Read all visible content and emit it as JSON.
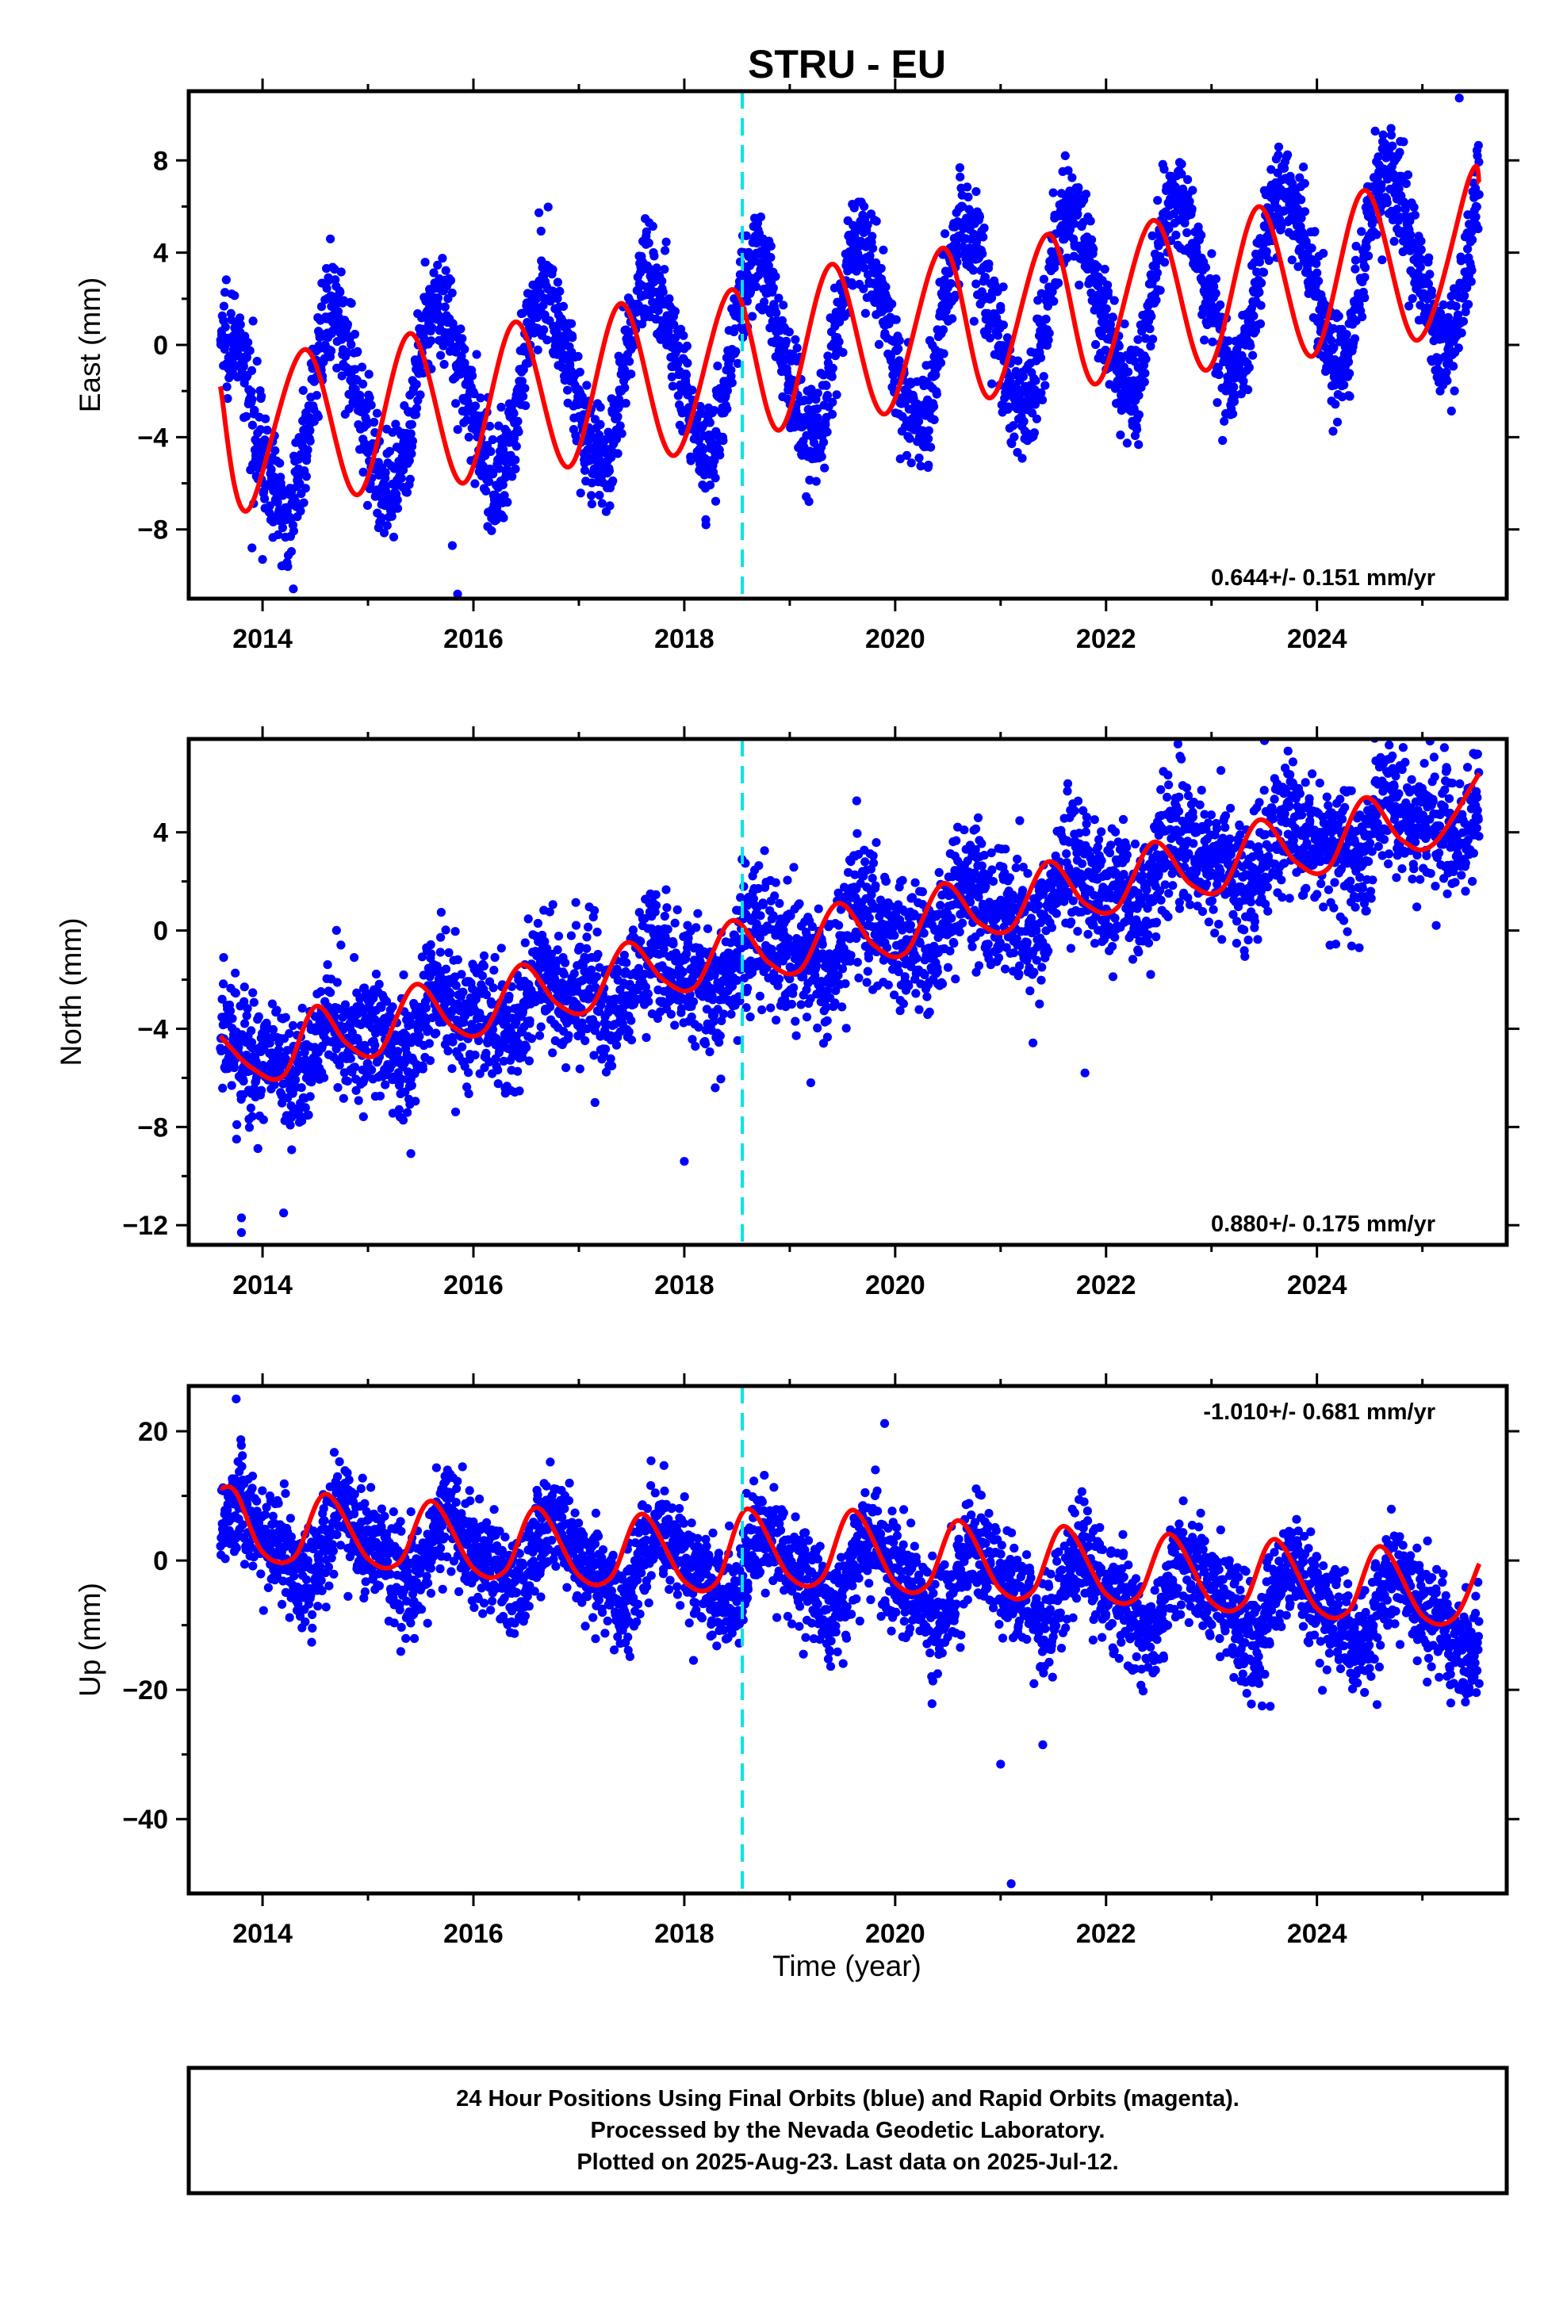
{
  "title": "STRU - EU",
  "xlabel": "Time (year)",
  "note": {
    "lines": [
      "24 Hour Positions Using Final Orbits (blue) and Rapid Orbits (magenta).",
      "Processed by the Nevada Geodetic Laboratory.",
      "Plotted on 2025-Aug-23. Last data on 2025-Jul-12."
    ]
  },
  "colors": {
    "points": "#0000ff",
    "model": "#ff0000",
    "event": "#00e5e5",
    "frame": "#000000"
  },
  "chart_data": [
    {
      "type": "scatter",
      "ylabel": "East (mm)",
      "rate_label": "0.644+/- 0.151 mm/yr",
      "xlim": [
        2013.3,
        2025.8
      ],
      "ylim": [
        -11,
        11
      ],
      "xticks": [
        2014,
        2016,
        2018,
        2020,
        2022,
        2024
      ],
      "yticks": [
        -8,
        -4,
        0,
        4,
        8
      ],
      "event_year": 2018.55,
      "data_range": [
        2013.6,
        2025.54
      ],
      "model": {
        "offset": -3.55,
        "rate": 0.644,
        "ref_year": 2013.6,
        "annual_amp": 4.0,
        "annual_phase_year": 2013.44,
        "semi_amp": 0.4,
        "scatter_sd": 1.15,
        "n_points": 3700
      },
      "model_line": [
        [
          2013.6,
          -1.8
        ],
        [
          2013.85,
          -7.2
        ],
        [
          2014.4,
          -0.2
        ],
        [
          2014.9,
          -6.5
        ],
        [
          2015.4,
          0.5
        ],
        [
          2015.9,
          -6.0
        ],
        [
          2016.4,
          1.0
        ],
        [
          2016.9,
          -5.3
        ],
        [
          2017.4,
          1.8
        ],
        [
          2017.9,
          -4.8
        ],
        [
          2018.45,
          2.4
        ],
        [
          2018.9,
          -3.7
        ],
        [
          2019.4,
          3.5
        ],
        [
          2019.9,
          -3.0
        ],
        [
          2020.45,
          4.2
        ],
        [
          2020.9,
          -2.3
        ],
        [
          2021.45,
          4.8
        ],
        [
          2021.9,
          -1.7
        ],
        [
          2022.45,
          5.4
        ],
        [
          2022.95,
          -1.1
        ],
        [
          2023.45,
          6.0
        ],
        [
          2023.95,
          -0.5
        ],
        [
          2024.45,
          6.7
        ],
        [
          2024.95,
          0.2
        ],
        [
          2025.45,
          7.3
        ],
        [
          2025.54,
          7.0
        ]
      ],
      "outliers": [
        [
          2015.85,
          -10.8
        ],
        [
          2014.0,
          -9.3
        ],
        [
          2013.9,
          -8.8
        ],
        [
          2015.8,
          -8.7
        ],
        [
          2025.35,
          10.7
        ]
      ]
    },
    {
      "type": "scatter",
      "ylabel": "North (mm)",
      "rate_label": "0.880+/- 0.175 mm/yr",
      "xlim": [
        2013.3,
        2025.8
      ],
      "ylim": [
        -12.8,
        7.8
      ],
      "xticks": [
        2014,
        2016,
        2018,
        2020,
        2022,
        2024
      ],
      "yticks": [
        -12,
        -8,
        -4,
        0,
        4
      ],
      "event_year": 2018.55,
      "data_range": [
        2013.6,
        2025.54
      ],
      "model": {
        "offset": -5.6,
        "rate": 0.88,
        "ref_year": 2013.6,
        "annual_amp": 0.9,
        "annual_phase_year": 2013.5,
        "semi_amp": 0.5,
        "scatter_sd": 1.3,
        "n_points": 3700
      },
      "model_line": [
        [
          2013.6,
          -4.3
        ],
        [
          2013.9,
          -5.6
        ],
        [
          2014.2,
          -5.9
        ],
        [
          2014.5,
          -3.1
        ],
        [
          2014.8,
          -4.6
        ],
        [
          2015.1,
          -5.0
        ],
        [
          2015.45,
          -2.2
        ],
        [
          2015.8,
          -3.9
        ],
        [
          2016.1,
          -4.1
        ],
        [
          2016.45,
          -1.4
        ],
        [
          2016.8,
          -3.0
        ],
        [
          2017.1,
          -3.2
        ],
        [
          2017.45,
          -0.5
        ],
        [
          2017.8,
          -2.0
        ],
        [
          2018.1,
          -2.3
        ],
        [
          2018.45,
          0.4
        ],
        [
          2018.8,
          -1.3
        ],
        [
          2019.1,
          -1.6
        ],
        [
          2019.45,
          1.1
        ],
        [
          2019.8,
          -0.6
        ],
        [
          2020.1,
          -0.9
        ],
        [
          2020.45,
          1.9
        ],
        [
          2020.8,
          0.3
        ],
        [
          2021.1,
          0.1
        ],
        [
          2021.45,
          2.8
        ],
        [
          2021.8,
          1.1
        ],
        [
          2022.1,
          0.9
        ],
        [
          2022.45,
          3.6
        ],
        [
          2022.8,
          1.9
        ],
        [
          2023.1,
          1.7
        ],
        [
          2023.45,
          4.5
        ],
        [
          2023.8,
          2.8
        ],
        [
          2024.1,
          2.5
        ],
        [
          2024.45,
          5.4
        ],
        [
          2024.8,
          3.7
        ],
        [
          2025.1,
          3.5
        ],
        [
          2025.54,
          6.4
        ]
      ],
      "outliers": [
        [
          2013.8,
          -12.3
        ],
        [
          2013.8,
          -11.7
        ],
        [
          2014.2,
          -11.5
        ],
        [
          2018.0,
          -9.4
        ],
        [
          2019.2,
          -6.2
        ],
        [
          2021.8,
          -5.8
        ]
      ]
    },
    {
      "type": "scatter",
      "ylabel": "Up (mm)",
      "rate_label": "-1.010+/- 0.681 mm/yr",
      "xlim": [
        2013.3,
        2025.8
      ],
      "ylim": [
        -51.5,
        27
      ],
      "xticks": [
        2014,
        2016,
        2018,
        2020,
        2022,
        2024
      ],
      "yticks": [
        -40,
        -20,
        0,
        20
      ],
      "event_year": 2018.55,
      "data_range": [
        2013.6,
        2025.54
      ],
      "model": {
        "offset": 3.5,
        "rate": -1.01,
        "ref_year": 2013.6,
        "annual_amp": 5.0,
        "annual_phase_year": 2013.58,
        "semi_amp": 2.0,
        "scatter_sd": 4.0,
        "n_points": 3700
      },
      "model_line": [
        [
          2013.6,
          11.2
        ],
        [
          2013.75,
          10.5
        ],
        [
          2014.0,
          1.3
        ],
        [
          2014.3,
          0.5
        ],
        [
          2014.6,
          10.3
        ],
        [
          2015.0,
          0.3
        ],
        [
          2015.3,
          -0.2
        ],
        [
          2015.6,
          9.2
        ],
        [
          2016.0,
          -1.2
        ],
        [
          2016.3,
          -1.6
        ],
        [
          2016.6,
          8.2
        ],
        [
          2017.0,
          -2.3
        ],
        [
          2017.3,
          -2.7
        ],
        [
          2017.6,
          7.2
        ],
        [
          2018.0,
          -3.2
        ],
        [
          2018.3,
          -3.5
        ],
        [
          2018.6,
          8.0
        ],
        [
          2019.0,
          -2.5
        ],
        [
          2019.3,
          -2.8
        ],
        [
          2019.6,
          7.8
        ],
        [
          2020.0,
          -3.4
        ],
        [
          2020.3,
          -3.9
        ],
        [
          2020.6,
          6.2
        ],
        [
          2021.0,
          -4.5
        ],
        [
          2021.3,
          -4.8
        ],
        [
          2021.6,
          5.3
        ],
        [
          2022.0,
          -5.2
        ],
        [
          2022.3,
          -5.6
        ],
        [
          2022.6,
          4.1
        ],
        [
          2023.0,
          -6.4
        ],
        [
          2023.3,
          -6.7
        ],
        [
          2023.6,
          3.3
        ],
        [
          2024.0,
          -7.4
        ],
        [
          2024.3,
          -7.8
        ],
        [
          2024.6,
          2.2
        ],
        [
          2025.0,
          -8.5
        ],
        [
          2025.3,
          -8.9
        ],
        [
          2025.54,
          -0.5
        ]
      ],
      "outliers": [
        [
          2013.75,
          25.0
        ],
        [
          2021.1,
          -50.0
        ],
        [
          2021.0,
          -31.5
        ],
        [
          2021.4,
          -28.5
        ],
        [
          2019.9,
          21.2
        ]
      ]
    }
  ]
}
